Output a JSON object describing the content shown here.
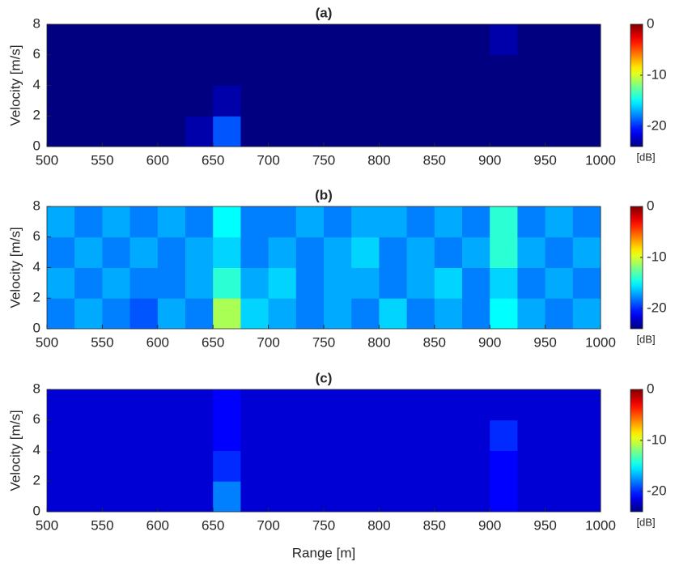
{
  "chart_data": [
    {
      "type": "heatmap",
      "title": "(a)",
      "ylabel": "Velocity [m/s]",
      "colormap": "jet",
      "colorbar_label": "[dB]",
      "xlim": [
        500,
        1000
      ],
      "ylim": [
        0,
        8
      ],
      "xticks": [
        500,
        550,
        600,
        650,
        700,
        750,
        800,
        850,
        900,
        950,
        1000
      ],
      "yticks": [
        0,
        2,
        4,
        6,
        8
      ],
      "clim": [
        -24,
        0
      ],
      "cticks": [
        0,
        -10,
        -20
      ],
      "xbins": [
        500,
        525,
        550,
        575,
        600,
        625,
        650,
        675,
        700,
        725,
        750,
        775,
        800,
        825,
        850,
        875,
        900,
        925,
        950,
        975,
        1000
      ],
      "ybins": [
        0,
        2,
        4,
        6,
        8
      ],
      "z": [
        [
          -24,
          -24,
          -24,
          -24,
          -24,
          -23,
          -19,
          -24,
          -24,
          -24,
          -24,
          -24,
          -24,
          -24,
          -24,
          -24,
          -24,
          -24,
          -24,
          -24
        ],
        [
          -24,
          -24,
          -24,
          -24,
          -24,
          -24,
          -23,
          -24,
          -24,
          -24,
          -24,
          -24,
          -24,
          -24,
          -24,
          -24,
          -24,
          -24,
          -24,
          -24
        ],
        [
          -24,
          -24,
          -24,
          -24,
          -24,
          -24,
          -24,
          -24,
          -24,
          -24,
          -24,
          -24,
          -24,
          -24,
          -24,
          -24,
          -24,
          -24,
          -24,
          -24
        ],
        [
          -24,
          -24,
          -24,
          -24,
          -24,
          -24,
          -24,
          -24,
          -24,
          -24,
          -24,
          -24,
          -24,
          -24,
          -24,
          -24,
          -23,
          -24,
          -24,
          -24
        ]
      ]
    },
    {
      "type": "heatmap",
      "title": "(b)",
      "ylabel": "Velocity [m/s]",
      "colormap": "jet",
      "colorbar_label": "[dB]",
      "xlim": [
        500,
        1000
      ],
      "ylim": [
        0,
        8
      ],
      "xticks": [
        500,
        550,
        600,
        650,
        700,
        750,
        800,
        850,
        900,
        950,
        1000
      ],
      "yticks": [
        0,
        2,
        4,
        6,
        8
      ],
      "clim": [
        -24,
        0
      ],
      "cticks": [
        0,
        -10,
        -20
      ],
      "xbins": [
        500,
        525,
        550,
        575,
        600,
        625,
        650,
        675,
        700,
        725,
        750,
        775,
        800,
        825,
        850,
        875,
        900,
        925,
        950,
        975,
        1000
      ],
      "ybins": [
        0,
        2,
        4,
        6,
        8
      ],
      "z": [
        [
          -18,
          -17,
          -18,
          -19,
          -17,
          -18,
          -11,
          -16,
          -17,
          -18,
          -17,
          -18,
          -16,
          -18,
          -17,
          -18,
          -15,
          -17,
          -18,
          -17
        ],
        [
          -17,
          -18,
          -17,
          -18,
          -18,
          -17,
          -14,
          -17,
          -16,
          -18,
          -17,
          -17,
          -18,
          -17,
          -16,
          -18,
          -16,
          -18,
          -17,
          -18
        ],
        [
          -18,
          -17,
          -18,
          -17,
          -18,
          -17,
          -16,
          -18,
          -17,
          -18,
          -17,
          -16,
          -18,
          -17,
          -18,
          -17,
          -14,
          -17,
          -18,
          -17
        ],
        [
          -17,
          -18,
          -17,
          -18,
          -17,
          -18,
          -15,
          -18,
          -18,
          -17,
          -18,
          -17,
          -17,
          -18,
          -17,
          -18,
          -14,
          -18,
          -17,
          -18
        ]
      ]
    },
    {
      "type": "heatmap",
      "title": "(c)",
      "xlabel": "Range [m]",
      "ylabel": "Velocity [m/s]",
      "colormap": "jet",
      "colorbar_label": "[dB]",
      "xlim": [
        500,
        1000
      ],
      "ylim": [
        0,
        8
      ],
      "xticks": [
        500,
        550,
        600,
        650,
        700,
        750,
        800,
        850,
        900,
        950,
        1000
      ],
      "yticks": [
        0,
        2,
        4,
        6,
        8
      ],
      "clim": [
        -24,
        0
      ],
      "cticks": [
        0,
        -10,
        -20
      ],
      "xbins": [
        500,
        525,
        550,
        575,
        600,
        625,
        650,
        675,
        700,
        725,
        750,
        775,
        800,
        825,
        850,
        875,
        900,
        925,
        950,
        975,
        1000
      ],
      "ybins": [
        0,
        2,
        4,
        6,
        8
      ],
      "z": [
        [
          -22,
          -22,
          -22,
          -22,
          -22,
          -22,
          -18,
          -22,
          -22,
          -22,
          -22,
          -22,
          -22,
          -22,
          -22,
          -22,
          -21,
          -22,
          -22,
          -22
        ],
        [
          -22,
          -22,
          -22,
          -22,
          -22,
          -22,
          -20,
          -22,
          -22,
          -22,
          -22,
          -22,
          -22,
          -22,
          -22,
          -22,
          -21,
          -22,
          -22,
          -22
        ],
        [
          -22,
          -22,
          -22,
          -22,
          -22,
          -22,
          -21,
          -22,
          -22,
          -22,
          -22,
          -22,
          -22,
          -22,
          -22,
          -22,
          -20,
          -22,
          -22,
          -22
        ],
        [
          -22,
          -22,
          -22,
          -22,
          -22,
          -22,
          -21,
          -22,
          -22,
          -22,
          -22,
          -22,
          -22,
          -22,
          -22,
          -22,
          -22,
          -22,
          -22,
          -22
        ]
      ]
    }
  ]
}
